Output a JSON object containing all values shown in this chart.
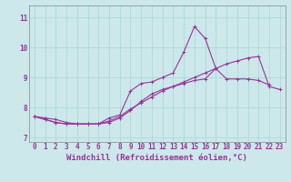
{
  "xlabel": "Windchill (Refroidissement éolien,°C)",
  "background_color": "#cce8ea",
  "grid_color": "#aad4d8",
  "line_color": "#993399",
  "x_values": [
    0,
    1,
    2,
    3,
    4,
    5,
    6,
    7,
    8,
    9,
    10,
    11,
    12,
    13,
    14,
    15,
    16,
    17,
    18,
    19,
    20,
    21,
    22,
    23
  ],
  "line1": [
    7.7,
    7.6,
    7.5,
    7.45,
    7.45,
    7.45,
    7.45,
    7.55,
    7.7,
    7.95,
    8.15,
    8.35,
    8.55,
    8.7,
    8.85,
    9.0,
    9.15,
    9.3,
    9.45,
    9.55,
    9.65,
    9.7,
    8.7,
    8.6
  ],
  "line2": [
    7.7,
    7.6,
    7.5,
    7.45,
    7.45,
    7.45,
    7.45,
    7.65,
    7.75,
    8.55,
    8.8,
    8.85,
    9.0,
    9.15,
    9.85,
    10.7,
    10.3,
    9.3,
    null,
    null,
    null,
    null,
    null,
    null
  ],
  "line3": [
    7.7,
    7.65,
    7.6,
    7.5,
    7.45,
    7.45,
    7.45,
    7.5,
    7.65,
    7.9,
    8.2,
    8.45,
    8.6,
    8.7,
    8.8,
    8.9,
    8.95,
    9.3,
    8.95,
    8.95,
    8.95,
    8.9,
    8.75,
    null
  ],
  "ylim": [
    6.85,
    11.4
  ],
  "xlim": [
    -0.5,
    23.5
  ],
  "yticks": [
    7,
    8,
    9,
    10,
    11
  ],
  "xticks": [
    0,
    1,
    2,
    3,
    4,
    5,
    6,
    7,
    8,
    9,
    10,
    11,
    12,
    13,
    14,
    15,
    16,
    17,
    18,
    19,
    20,
    21,
    22,
    23
  ],
  "marker": "+",
  "linewidth": 0.8,
  "markersize": 3,
  "xlabel_fontsize": 6.5,
  "tick_fontsize": 5.5
}
